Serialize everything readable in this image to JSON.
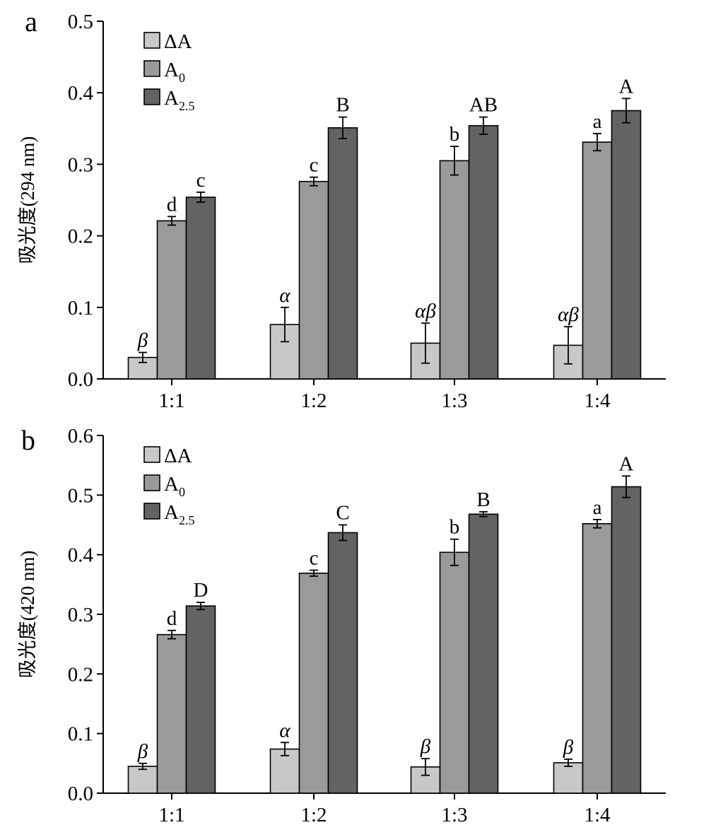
{
  "chart_data": [
    {
      "panel_label": "a",
      "type": "bar",
      "ylabel": "吸光度(294 nm)",
      "xlabel": "",
      "title": "",
      "categories": [
        "1:1",
        "1:2",
        "1:3",
        "1:4"
      ],
      "ylim": [
        0,
        0.5
      ],
      "yticks": [
        "0.0",
        "0.1",
        "0.2",
        "0.3",
        "0.4",
        "0.5"
      ],
      "legend_position": "top-left",
      "grid": false,
      "series": [
        {
          "name": "ΔA",
          "legend_main": "ΔA",
          "legend_sub": "",
          "color": "#c8c8c8",
          "values": [
            0.03,
            0.076,
            0.05,
            0.047
          ],
          "errors": [
            0.007,
            0.024,
            0.028,
            0.026
          ],
          "letters": [
            "β",
            "α",
            "αβ",
            "αβ"
          ],
          "italic": true
        },
        {
          "name": "A0",
          "legend_main": "A",
          "legend_sub": "0",
          "color": "#9a9a9a",
          "values": [
            0.221,
            0.276,
            0.305,
            0.331
          ],
          "errors": [
            0.006,
            0.006,
            0.02,
            0.012
          ],
          "letters": [
            "d",
            "c",
            "b",
            "a"
          ],
          "italic": false
        },
        {
          "name": "A2.5",
          "legend_main": "A",
          "legend_sub": "2.5",
          "color": "#636363",
          "values": [
            0.254,
            0.351,
            0.354,
            0.375
          ],
          "errors": [
            0.007,
            0.015,
            0.012,
            0.017
          ],
          "letters": [
            "c",
            "B",
            "AB",
            "A"
          ],
          "italic": false
        }
      ]
    },
    {
      "panel_label": "b",
      "type": "bar",
      "ylabel": "吸光度(420 nm)",
      "xlabel": "",
      "title": "",
      "categories": [
        "1:1",
        "1:2",
        "1:3",
        "1:4"
      ],
      "ylim": [
        0,
        0.6
      ],
      "yticks": [
        "0.0",
        "0.1",
        "0.2",
        "0.3",
        "0.4",
        "0.5",
        "0.6"
      ],
      "legend_position": "top-left",
      "grid": false,
      "series": [
        {
          "name": "ΔA",
          "legend_main": "ΔA",
          "legend_sub": "",
          "color": "#c8c8c8",
          "values": [
            0.045,
            0.074,
            0.044,
            0.051
          ],
          "errors": [
            0.005,
            0.011,
            0.014,
            0.006
          ],
          "letters": [
            "β",
            "α",
            "β",
            "β"
          ],
          "italic": true
        },
        {
          "name": "A0",
          "legend_main": "A",
          "legend_sub": "0",
          "color": "#9a9a9a",
          "values": [
            0.266,
            0.369,
            0.404,
            0.452
          ],
          "errors": [
            0.007,
            0.005,
            0.022,
            0.007
          ],
          "letters": [
            "d",
            "c",
            "b",
            "a"
          ],
          "italic": false
        },
        {
          "name": "A2.5",
          "legend_main": "A",
          "legend_sub": "2.5",
          "color": "#636363",
          "values": [
            0.314,
            0.437,
            0.468,
            0.514
          ],
          "errors": [
            0.006,
            0.013,
            0.004,
            0.018
          ],
          "letters": [
            "D",
            "C",
            "B",
            "A"
          ],
          "italic": false
        }
      ]
    }
  ]
}
